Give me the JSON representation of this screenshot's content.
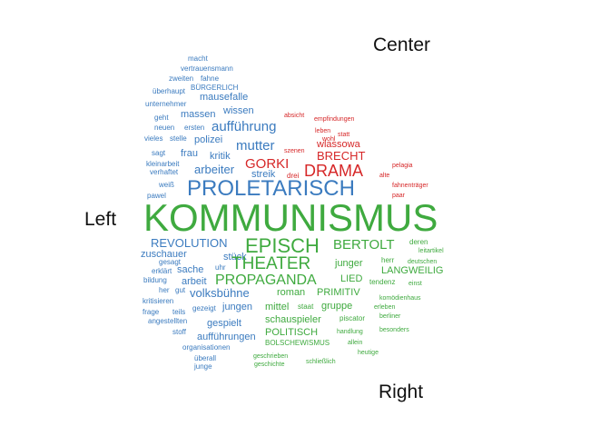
{
  "labels": {
    "center": "Center",
    "left": "Left",
    "right": "Right"
  },
  "colors": {
    "left": "#3b7bbf",
    "center": "#d62728",
    "right": "#3faa3f"
  },
  "words": [
    {
      "t": "macht",
      "g": "left"
    },
    {
      "t": "vertrauensmann",
      "g": "left"
    },
    {
      "t": "zweiten",
      "g": "left"
    },
    {
      "t": "fahne",
      "g": "left"
    },
    {
      "t": "BÜRGERLICH",
      "g": "left"
    },
    {
      "t": "überhaupt",
      "g": "left"
    },
    {
      "t": "mausefalle",
      "g": "left"
    },
    {
      "t": "unternehmer",
      "g": "left"
    },
    {
      "t": "wissen",
      "g": "left"
    },
    {
      "t": "massen",
      "g": "left"
    },
    {
      "t": "geht",
      "g": "left"
    },
    {
      "t": "aufführung",
      "g": "left"
    },
    {
      "t": "neuen",
      "g": "left"
    },
    {
      "t": "ersten",
      "g": "left"
    },
    {
      "t": "vieles",
      "g": "left"
    },
    {
      "t": "stelle",
      "g": "left"
    },
    {
      "t": "polizei",
      "g": "left"
    },
    {
      "t": "mutter",
      "g": "left"
    },
    {
      "t": "sagt",
      "g": "left"
    },
    {
      "t": "frau",
      "g": "left"
    },
    {
      "t": "kritik",
      "g": "left"
    },
    {
      "t": "kleinarbeit",
      "g": "left"
    },
    {
      "t": "arbeiter",
      "g": "left"
    },
    {
      "t": "verhaftet",
      "g": "left"
    },
    {
      "t": "streik",
      "g": "left"
    },
    {
      "t": "weiß",
      "g": "left"
    },
    {
      "t": "PROLETARISCH",
      "g": "left"
    },
    {
      "t": "pawel",
      "g": "left"
    },
    {
      "t": "REVOLUTION",
      "g": "left"
    },
    {
      "t": "zuschauer",
      "g": "left"
    },
    {
      "t": "stück",
      "g": "left"
    },
    {
      "t": "gesagt",
      "g": "left"
    },
    {
      "t": "uhr",
      "g": "left"
    },
    {
      "t": "erklärt",
      "g": "left"
    },
    {
      "t": "sache",
      "g": "left"
    },
    {
      "t": "bildung",
      "g": "left"
    },
    {
      "t": "arbeit",
      "g": "left"
    },
    {
      "t": "her",
      "g": "left"
    },
    {
      "t": "gut",
      "g": "left"
    },
    {
      "t": "volksbühne",
      "g": "left"
    },
    {
      "t": "kritisieren",
      "g": "left"
    },
    {
      "t": "gezeigt",
      "g": "left"
    },
    {
      "t": "jungen",
      "g": "left"
    },
    {
      "t": "frage",
      "g": "left"
    },
    {
      "t": "teils",
      "g": "left"
    },
    {
      "t": "angestellten",
      "g": "left"
    },
    {
      "t": "gespielt",
      "g": "left"
    },
    {
      "t": "stoff",
      "g": "left"
    },
    {
      "t": "aufführungen",
      "g": "left"
    },
    {
      "t": "organisationen",
      "g": "left"
    },
    {
      "t": "überall",
      "g": "left"
    },
    {
      "t": "junge",
      "g": "left"
    },
    {
      "t": "absicht",
      "g": "center"
    },
    {
      "t": "empfindungen",
      "g": "center"
    },
    {
      "t": "leben",
      "g": "center"
    },
    {
      "t": "wohl",
      "g": "center"
    },
    {
      "t": "statt",
      "g": "center"
    },
    {
      "t": "wlassowa",
      "g": "center"
    },
    {
      "t": "szenen",
      "g": "center"
    },
    {
      "t": "BRECHT",
      "g": "center"
    },
    {
      "t": "GORKI",
      "g": "center"
    },
    {
      "t": "DRAMA",
      "g": "center"
    },
    {
      "t": "drei",
      "g": "center"
    },
    {
      "t": "alte",
      "g": "center"
    },
    {
      "t": "pelagia",
      "g": "center"
    },
    {
      "t": "fahnenträger",
      "g": "center"
    },
    {
      "t": "paar",
      "g": "center"
    },
    {
      "t": "KOMMUNISMUS",
      "g": "right"
    },
    {
      "t": "EPISCH",
      "g": "right"
    },
    {
      "t": "BERTOLT",
      "g": "right"
    },
    {
      "t": "deren",
      "g": "right"
    },
    {
      "t": "leitartikel",
      "g": "right"
    },
    {
      "t": "THEATER",
      "g": "right"
    },
    {
      "t": "junger",
      "g": "right"
    },
    {
      "t": "herr",
      "g": "right"
    },
    {
      "t": "deutschen",
      "g": "right"
    },
    {
      "t": "LANGWEILIG",
      "g": "right"
    },
    {
      "t": "PROPAGANDA",
      "g": "right"
    },
    {
      "t": "LIED",
      "g": "right"
    },
    {
      "t": "tendenz",
      "g": "right"
    },
    {
      "t": "einst",
      "g": "right"
    },
    {
      "t": "roman",
      "g": "right"
    },
    {
      "t": "PRIMITIV",
      "g": "right"
    },
    {
      "t": "komödienhaus",
      "g": "right"
    },
    {
      "t": "mittel",
      "g": "right"
    },
    {
      "t": "staat",
      "g": "right"
    },
    {
      "t": "gruppe",
      "g": "right"
    },
    {
      "t": "erleben",
      "g": "right"
    },
    {
      "t": "berliner",
      "g": "right"
    },
    {
      "t": "schauspieler",
      "g": "right"
    },
    {
      "t": "piscator",
      "g": "right"
    },
    {
      "t": "POLITISCH",
      "g": "right"
    },
    {
      "t": "handlung",
      "g": "right"
    },
    {
      "t": "besonders",
      "g": "right"
    },
    {
      "t": "BOLSCHEWISMUS",
      "g": "right"
    },
    {
      "t": "allein",
      "g": "right"
    },
    {
      "t": "heutige",
      "g": "right"
    },
    {
      "t": "geschrieben",
      "g": "right"
    },
    {
      "t": "geschichte",
      "g": "right"
    },
    {
      "t": "schließlich",
      "g": "right"
    }
  ]
}
